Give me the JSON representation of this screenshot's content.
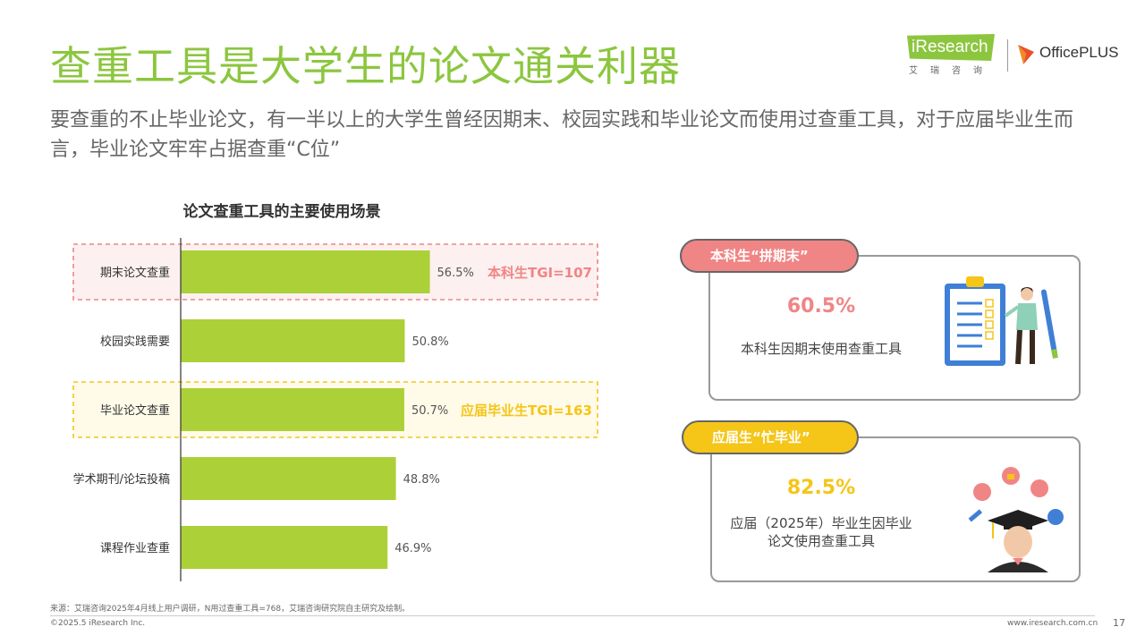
{
  "slide": {
    "title": "查重工具是大学生的论文通关利器",
    "subtitle": "要查重的不止毕业论文，有一半以上的大学生曾经因期末、校园实践和毕业论文而使用过查重工具，对于应届毕业生而言，毕业论文牢牢占据查重“C位”",
    "page_number": "17"
  },
  "logo": {
    "ir_text": "iResearch",
    "ir_cn": "艾瑞咨询",
    "op_text": "OfficePLUS"
  },
  "chart_data": {
    "type": "bar",
    "orientation": "horizontal",
    "title": "论文查重工具的主要使用场景",
    "categories": [
      "期末论文查重",
      "校园实践需要",
      "毕业论文查重",
      "学术期刊/论坛投稿",
      "课程作业查重"
    ],
    "values": [
      56.5,
      50.8,
      50.7,
      48.8,
      46.9
    ],
    "value_labels": [
      "56.5%",
      "50.8%",
      "50.7%",
      "48.8%",
      "46.9%"
    ],
    "unit": "%",
    "bar_color": "#acd037",
    "highlights": [
      {
        "index": 0,
        "label": "本科生TGI=107",
        "color": "#f08585",
        "fill": "#fdf0f0"
      },
      {
        "index": 2,
        "label": "应届毕业生TGI=163",
        "color": "#f5c518",
        "fill": "#fffbe8"
      }
    ]
  },
  "cards": [
    {
      "pill": "本科生“拼期末”",
      "pct": "60.5%",
      "desc": "本科生因期末使用查重工具",
      "pill_color": "#f08585",
      "pct_color": "#f08585"
    },
    {
      "pill": "应届生“忙毕业”",
      "pct": "82.5%",
      "desc": "应届（2025年）毕业生因毕业论文使用查重工具",
      "pill_color": "#f5c518",
      "pct_color": "#f5c518"
    }
  ],
  "footer": {
    "source": "来源：艾瑞咨询2025年4月线上用户调研，N用过查重工具=768，艾瑞咨询研究院自主研究及绘制。",
    "copyright": "©2025.5 iResearch Inc.",
    "website": "www.iresearch.com.cn"
  }
}
